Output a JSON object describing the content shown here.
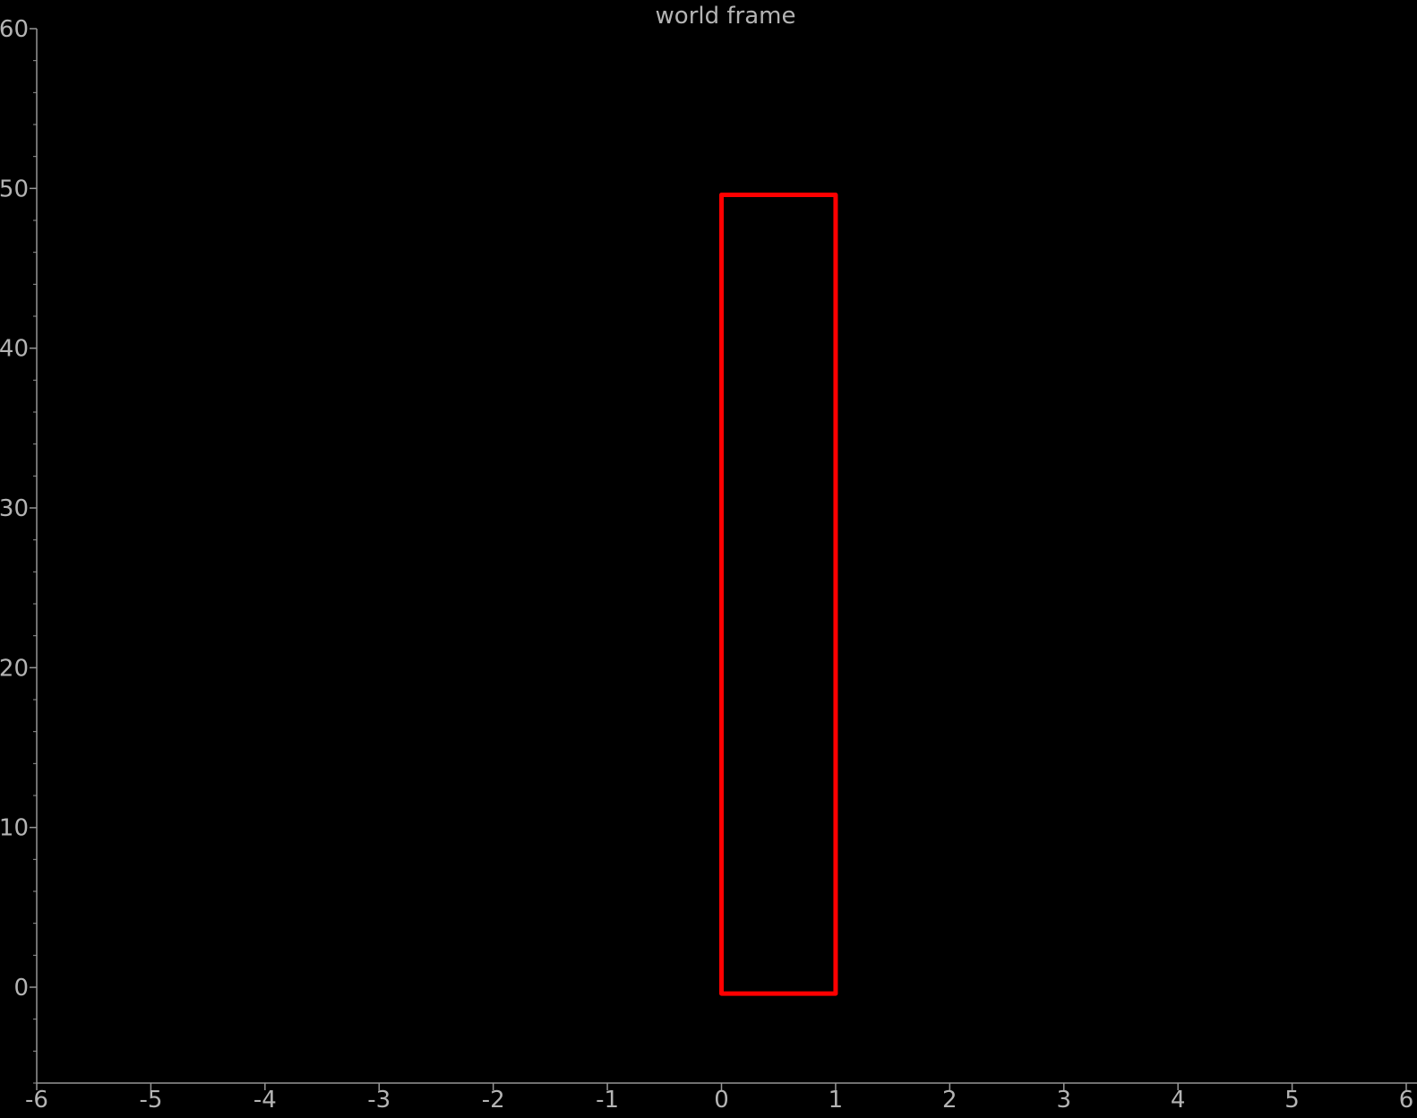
{
  "chart_data": {
    "type": "line",
    "title": "world frame",
    "xlabel": "",
    "ylabel": "",
    "xlim": [
      -6,
      6
    ],
    "ylim": [
      -6,
      60
    ],
    "x_ticks": [
      -6,
      -5,
      -4,
      -3,
      -2,
      -1,
      0,
      1,
      2,
      3,
      4,
      5,
      6
    ],
    "y_ticks": [
      0,
      10,
      20,
      30,
      40,
      50,
      60
    ],
    "x_tick_labels": [
      "-6",
      "-5",
      "-4",
      "-3",
      "-2",
      "-1",
      "0",
      "1",
      "2",
      "3",
      "4",
      "5",
      "6"
    ],
    "y_tick_labels": [
      "0",
      "10",
      "20",
      "30",
      "40",
      "50",
      "60"
    ],
    "grid": false,
    "series": [
      {
        "color": "#ff0000",
        "closed": true,
        "x": [
          0,
          1,
          1,
          0,
          0
        ],
        "y": [
          -0.4,
          -0.4,
          49.6,
          49.6,
          -0.4
        ]
      }
    ]
  },
  "colors": {
    "background": "#000000",
    "axis": "#969696",
    "text": "#b4b4b4"
  }
}
